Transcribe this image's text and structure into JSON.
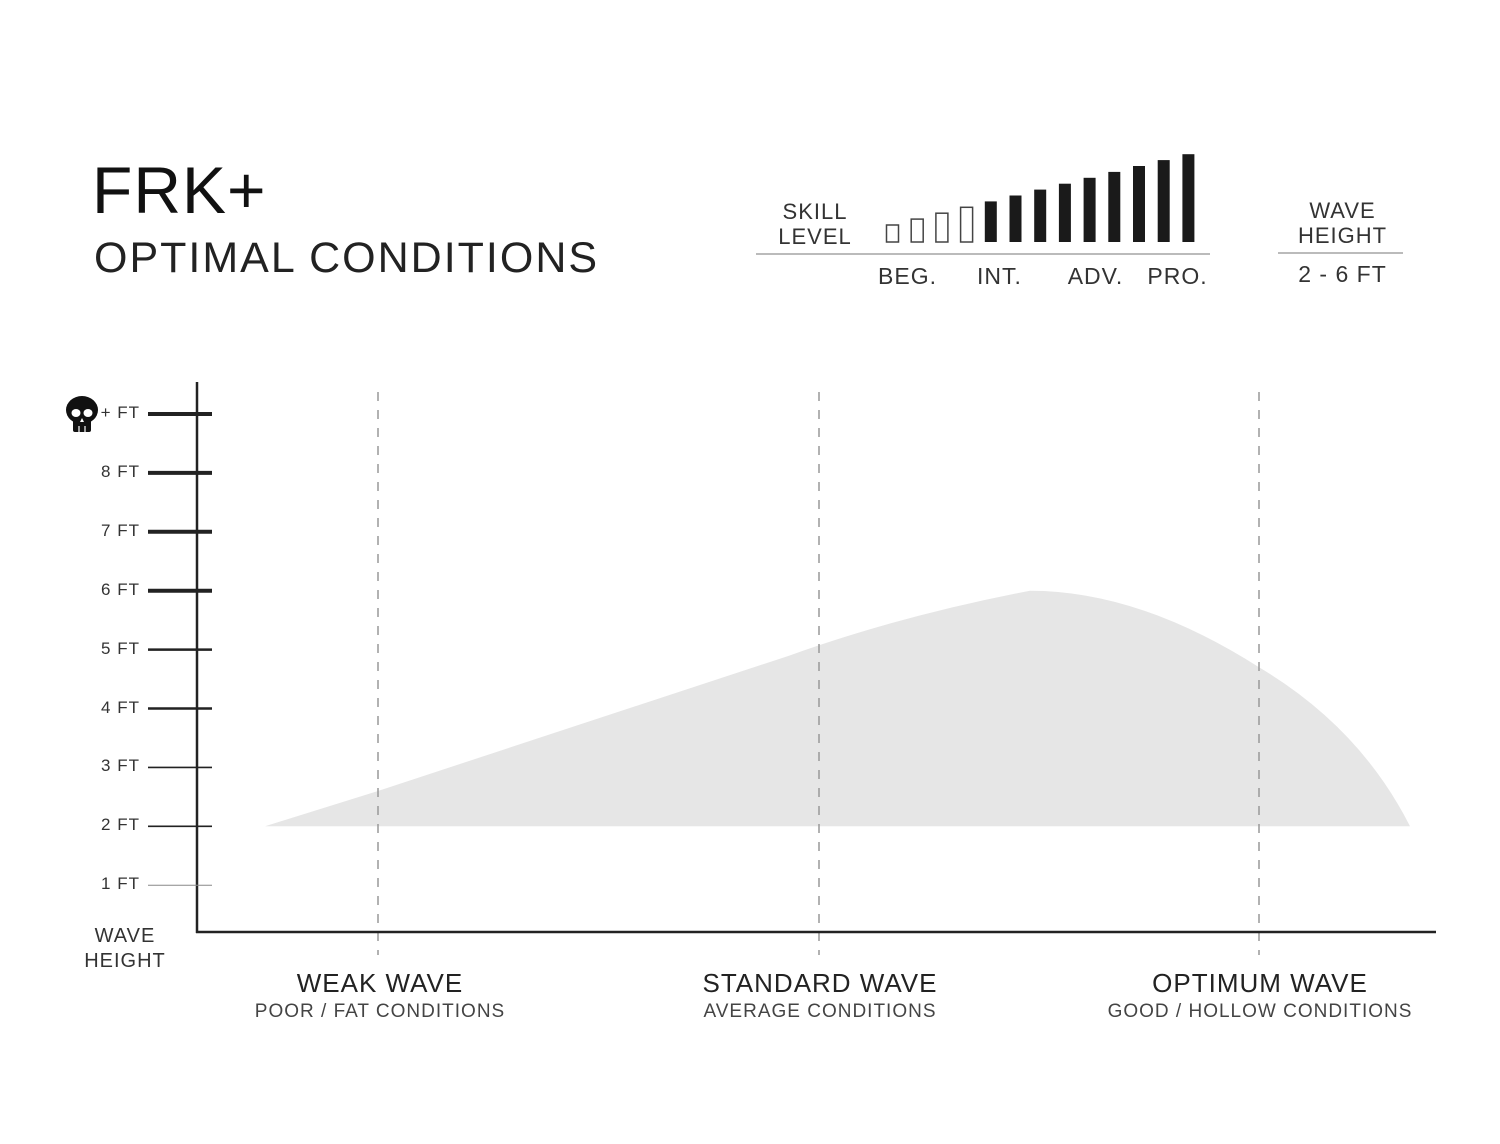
{
  "header": {
    "title": "FRK+",
    "subtitle": "OPTIMAL CONDITIONS"
  },
  "skill": {
    "label_line1": "SKILL",
    "label_line2": "LEVEL",
    "levels": [
      "BEG.",
      "INT.",
      "ADV.",
      "PRO."
    ],
    "bar_count": 13,
    "filled_from_bar": 5,
    "filled_color": "#1a1a1a"
  },
  "wave_height_box": {
    "label_line1": "WAVE",
    "label_line2": "HEIGHT",
    "value": "2 - 6 FT"
  },
  "chart_data": {
    "type": "area",
    "ylabel_line1": "WAVE",
    "ylabel_line2": "HEIGHT",
    "y_ticks": [
      {
        "value": 9,
        "label": "+ FT",
        "icon": "skull-icon"
      },
      {
        "value": 8,
        "label": "8 FT"
      },
      {
        "value": 7,
        "label": "7 FT"
      },
      {
        "value": 6,
        "label": "6 FT"
      },
      {
        "value": 5,
        "label": "5 FT"
      },
      {
        "value": 4,
        "label": "4 FT"
      },
      {
        "value": 3,
        "label": "3 FT"
      },
      {
        "value": 2,
        "label": "2 FT"
      },
      {
        "value": 1,
        "label": "1 FT"
      }
    ],
    "ylim": [
      0.2,
      9.5
    ],
    "categories": [
      {
        "label": "WEAK WAVE",
        "sublabel": "POOR / FAT CONDITIONS"
      },
      {
        "label": "STANDARD WAVE",
        "sublabel": "AVERAGE CONDITIONS"
      },
      {
        "label": "OPTIMUM WAVE",
        "sublabel": "GOOD / HOLLOW CONDITIONS"
      }
    ],
    "area_min_ft": 2,
    "area_upper_ft": {
      "weak": 2.6,
      "standard": 5.1,
      "peak": 6.0,
      "optimum": 4.7
    },
    "area_color": "#e6e6e6",
    "grid": "dashed vertical at categories"
  }
}
